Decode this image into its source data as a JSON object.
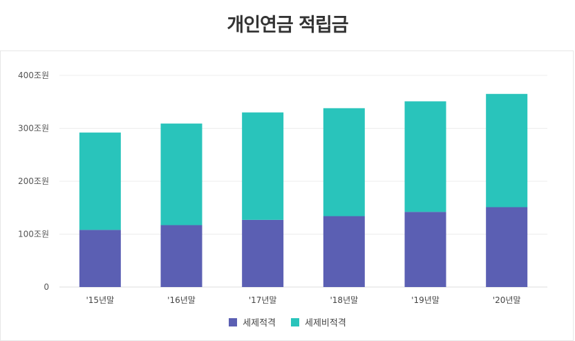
{
  "chart_data": {
    "type": "bar",
    "stacked": true,
    "title": "개인연금 적립금",
    "categories": [
      "'15년말",
      "'16년말",
      "'17년말",
      "'18년말",
      "'19년말",
      "'20년말"
    ],
    "series": [
      {
        "name": "세제적격",
        "color": "#5b5fb3",
        "values": [
          108,
          117,
          127,
          134,
          142,
          151
        ]
      },
      {
        "name": "세제비적격",
        "color": "#29c4bb",
        "values": [
          184,
          192,
          203,
          204,
          209,
          214
        ]
      }
    ],
    "ylim": [
      0,
      400
    ],
    "yticks": [
      {
        "value": 0,
        "label": "0"
      },
      {
        "value": 100,
        "label": "100조원"
      },
      {
        "value": 200,
        "label": "200조원"
      },
      {
        "value": 300,
        "label": "300조원"
      },
      {
        "value": 400,
        "label": "400조원"
      }
    ],
    "grid": true,
    "legend_position": "bottom"
  }
}
